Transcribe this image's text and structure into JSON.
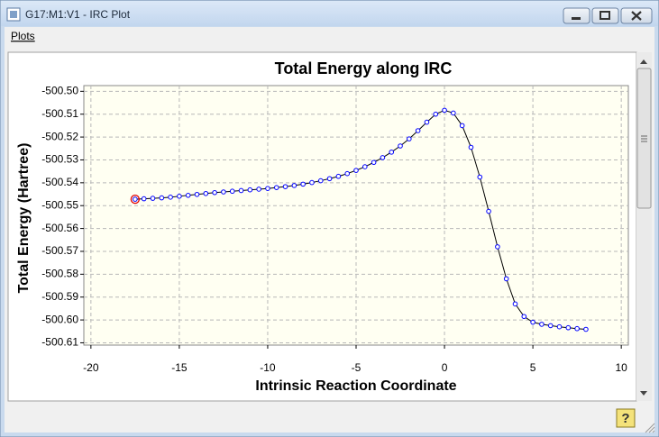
{
  "window": {
    "title": "G17:M1:V1 - IRC Plot"
  },
  "menu": [
    "Plots"
  ],
  "status_bar": {
    "help": "?"
  },
  "chart_data": {
    "type": "line",
    "title": "Total Energy along IRC",
    "xlabel": "Intrinsic Reaction Coordinate",
    "ylabel": "Total Energy (Hartree)",
    "x": [
      -17.5,
      -17,
      -16.5,
      -16,
      -15.5,
      -15,
      -14.5,
      -14,
      -13.5,
      -13,
      -12.5,
      -12,
      -11.5,
      -11,
      -10.5,
      -10,
      -9.5,
      -9,
      -8.5,
      -8,
      -7.5,
      -7,
      -6.5,
      -6,
      -5.5,
      -5,
      -4.5,
      -4,
      -3.5,
      -3,
      -2.5,
      -2,
      -1.5,
      -1,
      -0.5,
      0,
      0.5,
      1,
      1.5,
      2,
      2.5,
      3,
      3.5,
      4,
      4.5,
      5,
      5.5,
      6,
      6.5,
      7,
      7.5,
      8
    ],
    "values": [
      -500.5472,
      -500.547,
      -500.5468,
      -500.5466,
      -500.5463,
      -500.5459,
      -500.5455,
      -500.5451,
      -500.5447,
      -500.5443,
      -500.544,
      -500.5437,
      -500.5434,
      -500.5431,
      -500.5428,
      -500.5425,
      -500.5421,
      -500.5417,
      -500.5412,
      -500.5406,
      -500.5399,
      -500.5391,
      -500.5382,
      -500.5372,
      -500.536,
      -500.5346,
      -500.533,
      -500.5311,
      -500.529,
      -500.5266,
      -500.5239,
      -500.5208,
      -500.5172,
      -500.5135,
      -500.51,
      -500.5083,
      -500.5095,
      -500.515,
      -500.5245,
      -500.5375,
      -500.5525,
      -500.568,
      -500.582,
      -500.593,
      -500.5985,
      -500.601,
      -500.6019,
      -500.6025,
      -500.603,
      -500.6034,
      -500.6038,
      -500.6041
    ],
    "line_color": "#000000",
    "marker_color": "#0000ff",
    "highlight_color": "#e00000",
    "highlight_index": 0,
    "xlim": [
      -20.4,
      10.4
    ],
    "ylim": [
      -500.611,
      -500.4975
    ],
    "xticks": [
      -20,
      -15,
      -10,
      -5,
      0,
      5,
      10
    ],
    "yticks": [
      {
        "value": -500.5,
        "label": "-500.50"
      },
      -500.51,
      -500.52,
      -500.53,
      -500.54,
      -500.55,
      -500.56,
      -500.57,
      -500.58,
      -500.59,
      {
        "value": -500.6,
        "label": "-500.60"
      },
      -500.61
    ],
    "grid": true
  }
}
